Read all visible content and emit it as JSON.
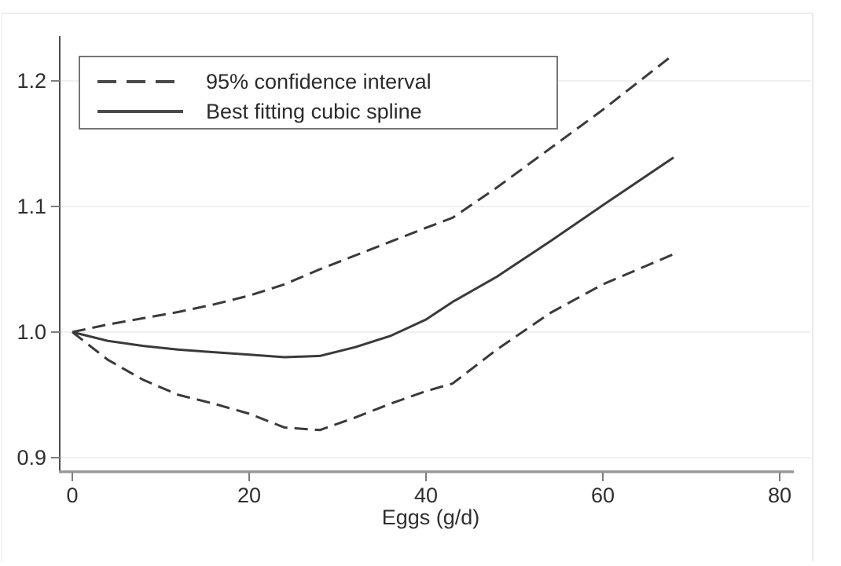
{
  "figure": {
    "background": "#ffffff",
    "frame_color": "#e9e9e9"
  },
  "chart_data": {
    "type": "line",
    "title": "",
    "xlabel": "Eggs (g/d)",
    "ylabel": "",
    "xlim": [
      0,
      81.5
    ],
    "ylim": [
      0.889,
      1.236
    ],
    "x_ticks": [
      0,
      20,
      40,
      60,
      80
    ],
    "y_ticks": [
      {
        "v": 0.9,
        "label": "0.9"
      },
      {
        "v": 1.0,
        "label": "1.0"
      },
      {
        "v": 1.1,
        "label": "1.1"
      },
      {
        "v": 1.2,
        "label": "1.2"
      }
    ],
    "grid": "horizontal",
    "legend_position": "top-left",
    "x": [
      0,
      4,
      8,
      12,
      16,
      20,
      24,
      28,
      32,
      36,
      40,
      43,
      48,
      54,
      60,
      68
    ],
    "series": [
      {
        "id": "upper-ci",
        "name": "95% confidence interval (upper)",
        "style": "dashed",
        "values": [
          1.0,
          1.006,
          1.011,
          1.016,
          1.022,
          1.029,
          1.038,
          1.05,
          1.061,
          1.072,
          1.083,
          1.091,
          1.115,
          1.146,
          1.177,
          1.221
        ]
      },
      {
        "id": "spline",
        "name": "Best fitting cubic spline",
        "style": "solid",
        "values": [
          1.0,
          0.993,
          0.989,
          0.986,
          0.984,
          0.982,
          0.98,
          0.981,
          0.988,
          0.997,
          1.01,
          1.024,
          1.044,
          1.072,
          1.101,
          1.139
        ]
      },
      {
        "id": "lower-ci",
        "name": "95% confidence interval (lower)",
        "style": "dashed",
        "values": [
          1.0,
          0.978,
          0.962,
          0.95,
          0.943,
          0.935,
          0.924,
          0.922,
          0.932,
          0.943,
          0.953,
          0.959,
          0.986,
          1.015,
          1.038,
          1.062
        ]
      }
    ],
    "legend": [
      {
        "label": "95% confidence interval",
        "style": "dashed"
      },
      {
        "label": "Best fitting cubic spline",
        "style": "solid"
      }
    ],
    "colors": {
      "line": "#3a3a3a",
      "axis_x": "#9a9a9a",
      "axis_y": "#4f4f4f",
      "tick": "#7d7d7d",
      "grid": "#f0f0f0",
      "legend_border": "#767676",
      "legend_sample": "#4a4a4a"
    }
  }
}
